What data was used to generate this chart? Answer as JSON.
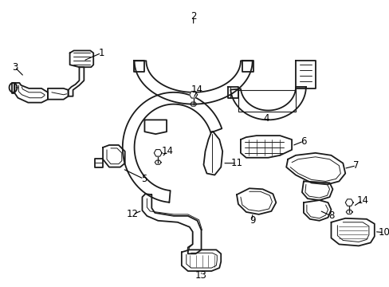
{
  "background_color": "#ffffff",
  "line_color": "#1a1a1a",
  "fig_width": 4.89,
  "fig_height": 3.6,
  "dpi": 100,
  "label_fontsize": 8.5,
  "lw_main": 1.3,
  "lw_inner": 0.7
}
